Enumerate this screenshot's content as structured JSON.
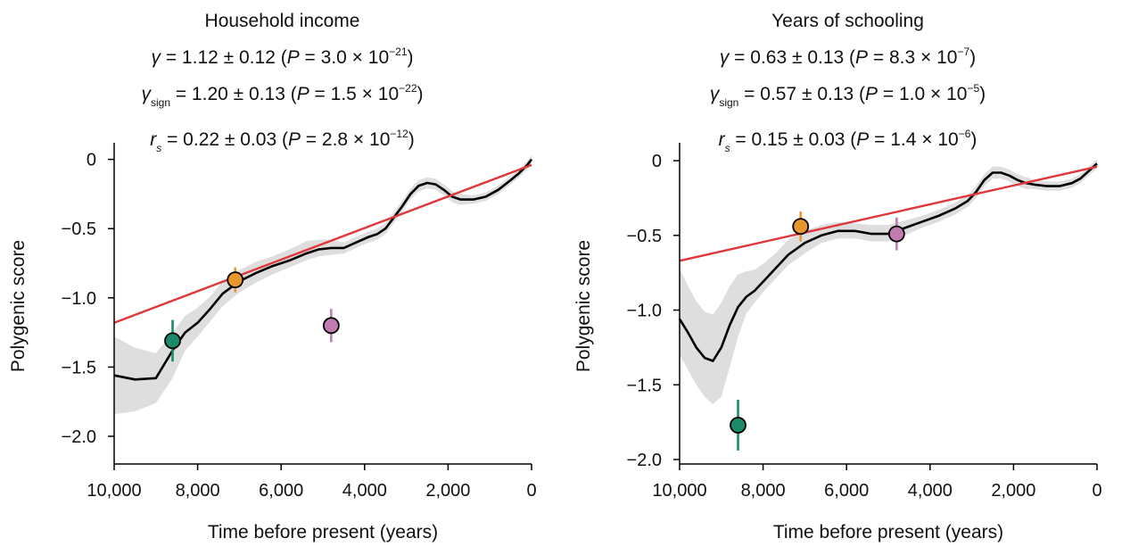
{
  "chart_data": [
    {
      "type": "line",
      "title": "Household income",
      "stats": {
        "gamma": {
          "sym": "γ",
          "text": " = 1.12 ± 0.12 (",
          "p": "P",
          "eq": " = 3.0 × 10",
          "exp": "−21",
          "close": ")"
        },
        "gamma_sign": {
          "sym": "γ",
          "sub": "sign",
          "text": " = 1.20 ± 0.13 (",
          "p": "P",
          "eq": " = 1.5 × 10",
          "exp": "−22",
          "close": ")"
        },
        "rs": {
          "sym": "r",
          "sub": "s",
          "text": " = 0.22 ± 0.03 (",
          "p": "P",
          "eq": " = 2.8 × 10",
          "exp": "−12",
          "close": ")"
        }
      },
      "xlabel": "Time before present (years)",
      "ylabel": "Polygenic score",
      "xlim": [
        10000,
        0
      ],
      "ylim": [
        -2.2,
        0.12
      ],
      "xticks": [
        10000,
        8000,
        6000,
        4000,
        2000,
        0
      ],
      "xtick_labels": [
        "10,000",
        "8,000",
        "6,000",
        "4,000",
        "2,000",
        "0"
      ],
      "yticks": [
        0,
        -0.5,
        -1.0,
        -1.5,
        -2.0
      ],
      "ytick_labels": [
        "0",
        "−0.5",
        "−1.0",
        "−1.5",
        "−2.0"
      ],
      "regression": {
        "x": [
          10000,
          0
        ],
        "y": [
          -1.18,
          -0.04
        ]
      },
      "smooth": {
        "x": [
          10000,
          9500,
          9000,
          8600,
          8300,
          8000,
          7700,
          7400,
          7000,
          6600,
          6200,
          5800,
          5400,
          5100,
          4800,
          4500,
          4200,
          3900,
          3700,
          3500,
          3300,
          3100,
          2900,
          2700,
          2500,
          2300,
          2100,
          1900,
          1700,
          1400,
          1100,
          800,
          500,
          300,
          100,
          0
        ],
        "y": [
          -1.56,
          -1.59,
          -1.58,
          -1.38,
          -1.25,
          -1.18,
          -1.08,
          -0.97,
          -0.88,
          -0.82,
          -0.77,
          -0.73,
          -0.68,
          -0.65,
          -0.64,
          -0.64,
          -0.6,
          -0.56,
          -0.54,
          -0.5,
          -0.42,
          -0.34,
          -0.25,
          -0.19,
          -0.17,
          -0.18,
          -0.22,
          -0.27,
          -0.29,
          -0.29,
          -0.27,
          -0.22,
          -0.15,
          -0.1,
          -0.04,
          0.0
        ],
        "lower": [
          -1.84,
          -1.82,
          -1.76,
          -1.58,
          -1.38,
          -1.28,
          -1.17,
          -1.06,
          -0.96,
          -0.89,
          -0.83,
          -0.78,
          -0.73,
          -0.7,
          -0.69,
          -0.68,
          -0.64,
          -0.6,
          -0.58,
          -0.54,
          -0.46,
          -0.38,
          -0.29,
          -0.23,
          -0.21,
          -0.22,
          -0.26,
          -0.31,
          -0.33,
          -0.32,
          -0.3,
          -0.25,
          -0.18,
          -0.13,
          -0.07,
          -0.03
        ],
        "upper": [
          -1.28,
          -1.36,
          -1.4,
          -1.25,
          -1.13,
          -1.07,
          -0.99,
          -0.88,
          -0.8,
          -0.74,
          -0.7,
          -0.65,
          -0.59,
          -0.58,
          -0.58,
          -0.6,
          -0.56,
          -0.52,
          -0.5,
          -0.46,
          -0.38,
          -0.3,
          -0.21,
          -0.15,
          -0.13,
          -0.14,
          -0.18,
          -0.23,
          -0.25,
          -0.26,
          -0.24,
          -0.19,
          -0.12,
          -0.07,
          -0.01,
          0.03
        ]
      },
      "points": [
        {
          "x": 8600,
          "y": -1.31,
          "err": 0.15,
          "color": "#1a8a6a"
        },
        {
          "x": 7100,
          "y": -0.87,
          "err": 0.09,
          "color": "#e8962e"
        },
        {
          "x": 4800,
          "y": -1.2,
          "err": 0.12,
          "color": "#c27bb0"
        }
      ],
      "line_color": "#e0373b",
      "band_color": "#dedede"
    },
    {
      "type": "line",
      "title": "Years of schooling",
      "stats": {
        "gamma": {
          "sym": "γ",
          "text": " = 0.63 ± 0.13 (",
          "p": "P",
          "eq": " = 8.3 × 10",
          "exp": "−7",
          "close": ")"
        },
        "gamma_sign": {
          "sym": "γ",
          "sub": "sign",
          "text": " = 0.57 ± 0.13 (",
          "p": "P",
          "eq": " = 1.0 × 10",
          "exp": "−5",
          "close": ")"
        },
        "rs": {
          "sym": "r",
          "sub": "s",
          "text": " = 0.15 ± 0.03 (",
          "p": "P",
          "eq": " = 1.4 × 10",
          "exp": "−6",
          "close": ")"
        }
      },
      "xlabel": "Time before present (years)",
      "ylabel": "Polygenic score",
      "xlim": [
        10000,
        0
      ],
      "ylim": [
        -2.03,
        0.12
      ],
      "xticks": [
        10000,
        8000,
        6000,
        4000,
        2000,
        0
      ],
      "xtick_labels": [
        "10,000",
        "8,000",
        "6,000",
        "4,000",
        "2,000",
        "0"
      ],
      "yticks": [
        0,
        -0.5,
        -1.0,
        -1.5,
        -2.0
      ],
      "ytick_labels": [
        "0",
        "−0.5",
        "−1.0",
        "−1.5",
        "−2.0"
      ],
      "regression": {
        "x": [
          10000,
          0
        ],
        "y": [
          -0.67,
          -0.04
        ]
      },
      "smooth": {
        "x": [
          10000,
          9800,
          9600,
          9400,
          9200,
          9000,
          8800,
          8600,
          8400,
          8200,
          8000,
          7700,
          7400,
          7000,
          6600,
          6200,
          5800,
          5400,
          5000,
          4600,
          4200,
          3800,
          3400,
          3100,
          2900,
          2700,
          2500,
          2300,
          2100,
          1900,
          1700,
          1500,
          1200,
          900,
          600,
          400,
          200,
          0
        ],
        "y": [
          -1.06,
          -1.15,
          -1.25,
          -1.32,
          -1.34,
          -1.25,
          -1.1,
          -0.98,
          -0.91,
          -0.87,
          -0.81,
          -0.72,
          -0.63,
          -0.55,
          -0.5,
          -0.47,
          -0.47,
          -0.49,
          -0.49,
          -0.45,
          -0.41,
          -0.37,
          -0.32,
          -0.27,
          -0.21,
          -0.13,
          -0.08,
          -0.08,
          -0.1,
          -0.13,
          -0.15,
          -0.16,
          -0.17,
          -0.17,
          -0.15,
          -0.12,
          -0.07,
          -0.02
        ],
        "lower": [
          -1.3,
          -1.4,
          -1.5,
          -1.58,
          -1.63,
          -1.58,
          -1.38,
          -1.18,
          -1.02,
          -0.95,
          -0.88,
          -0.79,
          -0.7,
          -0.62,
          -0.55,
          -0.52,
          -0.52,
          -0.54,
          -0.54,
          -0.5,
          -0.45,
          -0.41,
          -0.36,
          -0.31,
          -0.25,
          -0.17,
          -0.12,
          -0.12,
          -0.14,
          -0.17,
          -0.19,
          -0.19,
          -0.2,
          -0.2,
          -0.18,
          -0.15,
          -0.1,
          -0.05
        ],
        "upper": [
          -0.72,
          -0.84,
          -0.94,
          -1.01,
          -1.03,
          -0.95,
          -0.84,
          -0.76,
          -0.74,
          -0.73,
          -0.69,
          -0.62,
          -0.53,
          -0.47,
          -0.43,
          -0.41,
          -0.42,
          -0.43,
          -0.43,
          -0.4,
          -0.37,
          -0.33,
          -0.28,
          -0.23,
          -0.17,
          -0.09,
          -0.04,
          -0.04,
          -0.06,
          -0.09,
          -0.11,
          -0.13,
          -0.14,
          -0.14,
          -0.12,
          -0.09,
          -0.04,
          0.01
        ]
      },
      "points": [
        {
          "x": 8600,
          "y": -1.77,
          "err": 0.17,
          "color": "#1a8a6a"
        },
        {
          "x": 7100,
          "y": -0.44,
          "err": 0.1,
          "color": "#e8962e"
        },
        {
          "x": 4800,
          "y": -0.49,
          "err": 0.11,
          "color": "#c27bb0"
        }
      ],
      "line_color": "#e0373b",
      "band_color": "#dedede"
    }
  ]
}
